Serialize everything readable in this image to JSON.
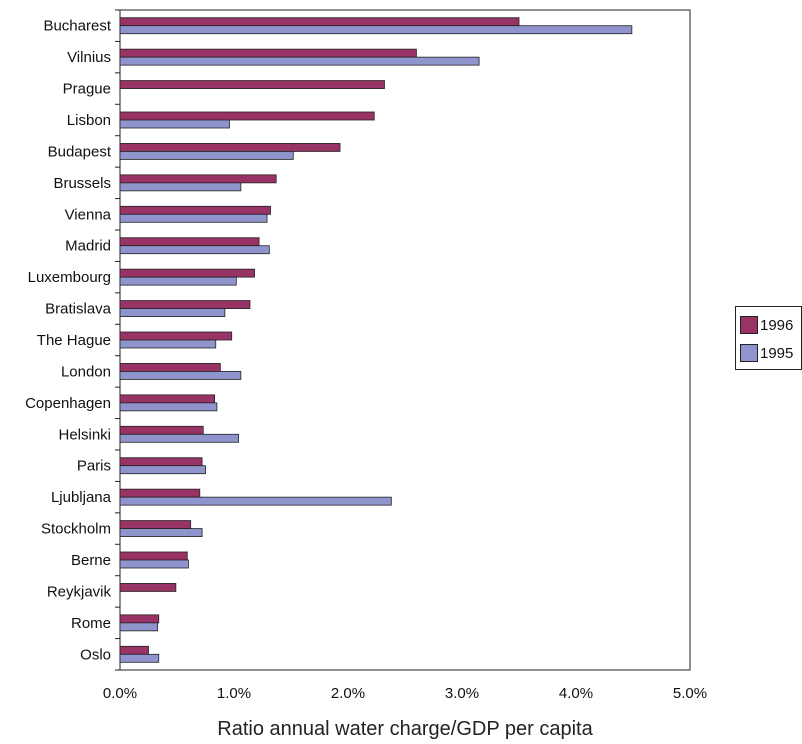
{
  "chart_data": {
    "type": "bar",
    "orientation": "horizontal",
    "categories": [
      "Bucharest",
      "Vilnius",
      "Prague",
      "Lisbon",
      "Budapest",
      "Brussels",
      "Vienna",
      "Madrid",
      "Luxembourg",
      "Bratislava",
      "The Hague",
      "London",
      "Copenhagen",
      "Helsinki",
      "Paris",
      "Ljubljana",
      "Stockholm",
      "Berne",
      "Reykjavik",
      "Rome",
      "Oslo"
    ],
    "series": [
      {
        "name": "1996",
        "color": "#993366",
        "values": [
          3.5,
          2.6,
          2.32,
          2.23,
          1.93,
          1.37,
          1.32,
          1.22,
          1.18,
          1.14,
          0.98,
          0.88,
          0.83,
          0.73,
          0.72,
          0.7,
          0.62,
          0.59,
          0.49,
          0.34,
          0.25
        ]
      },
      {
        "name": "1995",
        "color": "#8f94cc",
        "values": [
          4.49,
          3.15,
          null,
          0.96,
          1.52,
          1.06,
          1.29,
          1.31,
          1.02,
          0.92,
          0.84,
          1.06,
          0.85,
          1.04,
          0.75,
          2.38,
          0.72,
          0.6,
          null,
          0.33,
          0.34
        ]
      }
    ],
    "x_ticks": [
      "0.0%",
      "1.0%",
      "2.0%",
      "3.0%",
      "4.0%",
      "5.0%"
    ],
    "xlim": [
      0,
      5
    ],
    "xlabel": "Ratio annual water charge/GDP per capita",
    "ylabel": "",
    "title": "",
    "legend_position": "right",
    "grid": false
  }
}
